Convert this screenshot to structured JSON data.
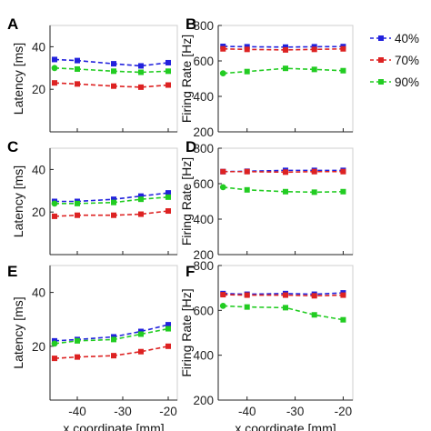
{
  "chart_data": [
    {
      "type": "line",
      "panel": "A",
      "ylabel": "Latency [ms]",
      "xlabel": "",
      "xlim": [
        -46,
        -18
      ],
      "ylim": [
        0,
        50
      ],
      "xticks": [
        -40,
        -30,
        -20
      ],
      "yticks": [
        20,
        40
      ],
      "x": [
        -45,
        -40,
        -32,
        -26,
        -20
      ],
      "series": [
        {
          "name": "40%",
          "color": "#2222dd",
          "values": [
            34,
            33.5,
            32,
            31,
            32.5
          ]
        },
        {
          "name": "70%",
          "color": "#dd2222",
          "values": [
            23,
            22.5,
            21.5,
            21,
            22
          ]
        },
        {
          "name": "90%",
          "color": "#22cc22",
          "values": [
            30,
            29.5,
            28.5,
            28,
            28.5
          ]
        }
      ]
    },
    {
      "type": "line",
      "panel": "B",
      "ylabel": "Firing Rate [Hz]",
      "xlabel": "",
      "xlim": [
        -46,
        -18
      ],
      "ylim": [
        200,
        800
      ],
      "xticks": [
        -40,
        -30,
        -20
      ],
      "yticks": [
        200,
        400,
        600,
        800
      ],
      "x": [
        -45,
        -40,
        -32,
        -26,
        -20
      ],
      "series": [
        {
          "name": "40%",
          "color": "#2222dd",
          "values": [
            682,
            680,
            678,
            680,
            681
          ]
        },
        {
          "name": "70%",
          "color": "#dd2222",
          "values": [
            668,
            665,
            662,
            665,
            668
          ]
        },
        {
          "name": "90%",
          "color": "#22cc22",
          "values": [
            530,
            540,
            558,
            552,
            545
          ]
        }
      ]
    },
    {
      "type": "line",
      "panel": "C",
      "ylabel": "Latency [ms]",
      "xlabel": "",
      "xlim": [
        -46,
        -18
      ],
      "ylim": [
        0,
        50
      ],
      "xticks": [
        -40,
        -30,
        -20
      ],
      "yticks": [
        20,
        40
      ],
      "x": [
        -45,
        -40,
        -32,
        -26,
        -20
      ],
      "series": [
        {
          "name": "40%",
          "color": "#2222dd",
          "values": [
            25,
            25,
            26,
            27.5,
            29
          ]
        },
        {
          "name": "70%",
          "color": "#dd2222",
          "values": [
            18,
            18.5,
            18.5,
            19,
            20.5
          ]
        },
        {
          "name": "90%",
          "color": "#22cc22",
          "values": [
            24,
            24,
            24.5,
            26,
            27
          ]
        }
      ]
    },
    {
      "type": "line",
      "panel": "D",
      "ylabel": "Firing Rate [Hz]",
      "xlabel": "",
      "xlim": [
        -46,
        -18
      ],
      "ylim": [
        200,
        800
      ],
      "xticks": [
        -40,
        -30,
        -20
      ],
      "yticks": [
        200,
        400,
        600,
        800
      ],
      "x": [
        -45,
        -40,
        -32,
        -26,
        -20
      ],
      "series": [
        {
          "name": "40%",
          "color": "#2222dd",
          "values": [
            668,
            670,
            675,
            675,
            675
          ]
        },
        {
          "name": "70%",
          "color": "#dd2222",
          "values": [
            668,
            668,
            665,
            668,
            668
          ]
        },
        {
          "name": "90%",
          "color": "#22cc22",
          "values": [
            580,
            565,
            555,
            552,
            555
          ]
        }
      ]
    },
    {
      "type": "line",
      "panel": "E",
      "ylabel": "Latency [ms]",
      "xlabel": "x coordinate [mm]",
      "xlim": [
        -46,
        -18
      ],
      "ylim": [
        0,
        50
      ],
      "xticks": [
        -40,
        -30,
        -20
      ],
      "yticks": [
        20,
        40
      ],
      "x": [
        -45,
        -40,
        -32,
        -26,
        -20
      ],
      "series": [
        {
          "name": "40%",
          "color": "#2222dd",
          "values": [
            22,
            22.5,
            23.5,
            25.5,
            28
          ]
        },
        {
          "name": "70%",
          "color": "#dd2222",
          "values": [
            15.5,
            16,
            16.5,
            18,
            20
          ]
        },
        {
          "name": "90%",
          "color": "#22cc22",
          "values": [
            21,
            22,
            22.5,
            24.5,
            26.5
          ]
        }
      ]
    },
    {
      "type": "line",
      "panel": "F",
      "ylabel": "Firing Rate [Hz]",
      "xlabel": "x coordinate [mm]",
      "xlim": [
        -46,
        -18
      ],
      "ylim": [
        200,
        800
      ],
      "xticks": [
        -40,
        -30,
        -20
      ],
      "yticks": [
        200,
        400,
        600,
        800
      ],
      "x": [
        -45,
        -40,
        -32,
        -26,
        -20
      ],
      "series": [
        {
          "name": "40%",
          "color": "#2222dd",
          "values": [
            675,
            672,
            675,
            672,
            678
          ]
        },
        {
          "name": "70%",
          "color": "#dd2222",
          "values": [
            670,
            668,
            668,
            665,
            668
          ]
        },
        {
          "name": "90%",
          "color": "#22cc22",
          "values": [
            620,
            615,
            612,
            580,
            558
          ]
        }
      ]
    }
  ],
  "legend": {
    "placement": "top-right",
    "items": [
      {
        "label": "40%",
        "color": "#2222dd"
      },
      {
        "label": "70%",
        "color": "#dd2222"
      },
      {
        "label": "90%",
        "color": "#22cc22"
      }
    ]
  }
}
